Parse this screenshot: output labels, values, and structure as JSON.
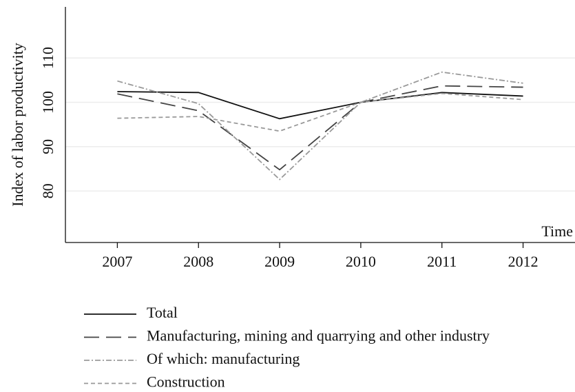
{
  "chart_data": {
    "type": "line",
    "y_label": "Index of labor productivity",
    "x_label": "Time",
    "x": [
      2007,
      2008,
      2009,
      2010,
      2011,
      2012
    ],
    "xlim": [
      2006.36,
      2012.64
    ],
    "xticks": [
      2007,
      2008,
      2009,
      2010,
      2011,
      2012
    ],
    "ylim": [
      68.4,
      121.5
    ],
    "yticks": [
      80,
      90,
      100,
      110
    ],
    "grid": true,
    "legend": "bottom",
    "series": [
      {
        "name": "Total",
        "color": "#111111",
        "line_style": "solid",
        "values": [
          102.4,
          102.2,
          96.3,
          100,
          102.2,
          101.4
        ]
      },
      {
        "name": "Manufacturing, mining and quarrying and other industry",
        "color": "#444444",
        "line_style": "longdash",
        "values": [
          101.9,
          98.1,
          84.8,
          100,
          103.7,
          103.4
        ]
      },
      {
        "name": "Of which: manufacturing",
        "color": "#999999",
        "line_style": "dashdot",
        "values": [
          104.8,
          99.7,
          82.6,
          100,
          106.8,
          104.3
        ]
      },
      {
        "name": "Construction",
        "color": "#999999",
        "line_style": "dash",
        "values": [
          96.4,
          96.8,
          93.5,
          100,
          102.0,
          100.6
        ]
      }
    ]
  }
}
